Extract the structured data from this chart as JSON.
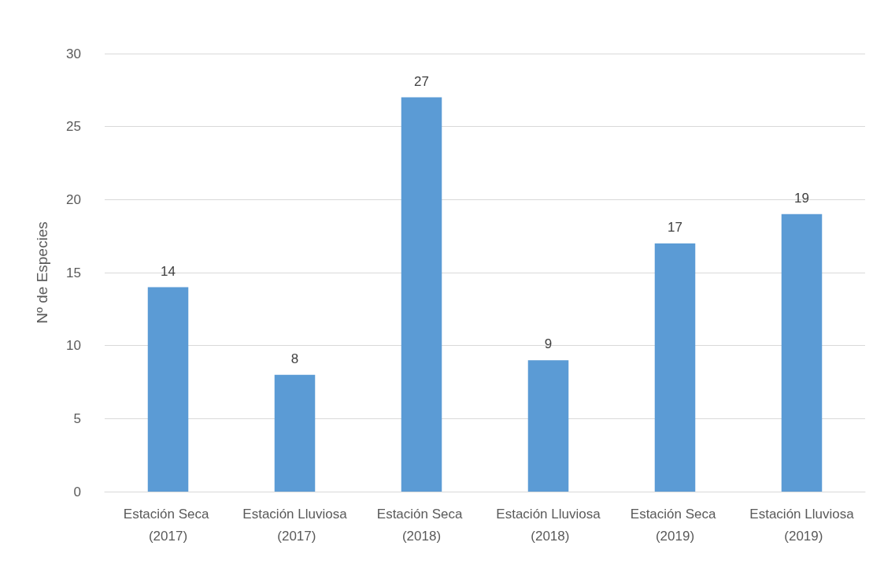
{
  "chart_data": {
    "type": "bar",
    "ylabel": "Nº de Especies",
    "categories": [
      "Estación Seca (2017)",
      "Estación Lluviosa (2017)",
      "Estación Seca (2018)",
      "Estación Lluviosa (2018)",
      "Estación Seca (2019)",
      "Estación Lluviosa (2019)"
    ],
    "values": [
      14,
      8,
      27,
      9,
      17,
      19
    ],
    "color": "#5b9bd5",
    "ylim": [
      0,
      30
    ],
    "yticks": [
      0,
      5,
      10,
      15,
      20,
      25,
      30
    ],
    "grid": "y",
    "data_labels": true
  }
}
